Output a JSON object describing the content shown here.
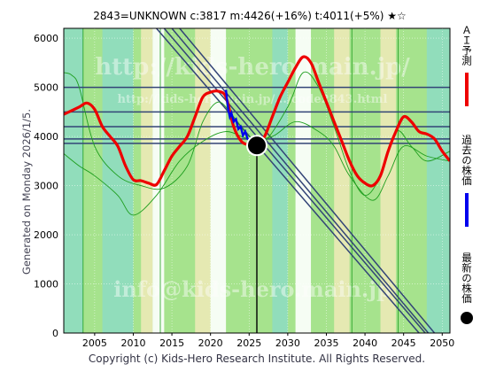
{
  "header": {
    "title": "2843=UNKNOWN    c:3817  m:4426(+16%)  t:4011(+5%)  ★☆"
  },
  "side_note": "Generated on Monday 2026/1/5.",
  "footer": "Copyright (c) Kids-Hero Research Institute. All Rights Reserved.",
  "watermarks": {
    "url": "http://kids-hero.main.jp/",
    "page": "http://kids-hero.main.jp/.../code2843.html",
    "email": "info@kids-hero.main.jp"
  },
  "legend": [
    {
      "label": "ＡＩ予測",
      "color": "#ee0000",
      "marker": "line"
    },
    {
      "label": "過去の株価",
      "color": "#0000ee",
      "marker": "line"
    },
    {
      "label": "最新の株価",
      "color": "#000000",
      "marker": "dot"
    }
  ],
  "colors": {
    "background_fill": "#a6e38d",
    "teal_band": "#8fdcc0",
    "pale_band": "#ece9b6",
    "white_band": "#ffffff",
    "ai_line": "#ee0000",
    "past_line": "#0000ee",
    "trend_lines": "#334477",
    "thin_green": "#1e9e1e"
  },
  "chart_data": {
    "type": "line",
    "title": "2843=UNKNOWN    c:3817  m:4426(+16%)  t:4011(+5%)  ★☆",
    "xlabel": "",
    "ylabel": "",
    "xlim": [
      2001,
      2051
    ],
    "ylim": [
      0,
      6200
    ],
    "x_ticks": [
      2005,
      2010,
      2015,
      2020,
      2025,
      2030,
      2035,
      2040,
      2045,
      2050
    ],
    "y_ticks": [
      0,
      1000,
      2000,
      3000,
      4000,
      5000,
      6000
    ],
    "grid": true,
    "legend_position": "right-outside",
    "series": [
      {
        "name": "ＡＩ予測",
        "x": [
          2001,
          2003,
          2004,
          2005,
          2006,
          2007,
          2008,
          2009,
          2010,
          2011,
          2012,
          2013,
          2014,
          2015,
          2016,
          2017,
          2018,
          2019,
          2020,
          2021,
          2022,
          2023,
          2024,
          2025,
          2026,
          2027,
          2028,
          2029,
          2030,
          2031,
          2032,
          2033,
          2034,
          2035,
          2036,
          2037,
          2038,
          2039,
          2040,
          2041,
          2042,
          2043,
          2044,
          2045,
          2046,
          2047,
          2048,
          2049,
          2050,
          2051
        ],
        "values": [
          4450,
          4600,
          4680,
          4550,
          4200,
          4000,
          3800,
          3400,
          3120,
          3100,
          3050,
          3020,
          3300,
          3600,
          3800,
          4000,
          4400,
          4800,
          4900,
          4920,
          4800,
          4200,
          3900,
          3830,
          3820,
          4000,
          4400,
          4800,
          5100,
          5400,
          5620,
          5500,
          5100,
          4700,
          4300,
          3900,
          3500,
          3200,
          3050,
          3000,
          3200,
          3700,
          4100,
          4400,
          4300,
          4100,
          4050,
          3950,
          3700,
          3500
        ]
      },
      {
        "name": "過去の株価",
        "x": [
          2022.0,
          2022.1,
          2022.3,
          2022.5,
          2022.7,
          2023.0,
          2023.3,
          2023.6,
          2023.9,
          2024.2,
          2024.5,
          2024.8,
          2025.1
        ],
        "values": [
          4950,
          4800,
          4550,
          4400,
          4480,
          4300,
          4350,
          4150,
          4200,
          4020,
          4100,
          3950,
          3900
        ]
      },
      {
        "name": "最新の株価",
        "x": [
          2026
        ],
        "values": [
          3817
        ]
      },
      {
        "name": "",
        "x": [
          2001,
          2002,
          2003,
          2005,
          2008,
          2011,
          2014,
          2017,
          2019,
          2021,
          2023,
          2025,
          2027,
          2030,
          2032,
          2034,
          2036,
          2038,
          2040,
          2042,
          2044,
          2046,
          2048,
          2051
        ],
        "values": [
          5300,
          5250,
          5000,
          3800,
          3200,
          3000,
          2950,
          3400,
          4300,
          4700,
          4400,
          4000,
          3900,
          4600,
          5300,
          5000,
          4200,
          3300,
          2800,
          3200,
          4100,
          3800,
          3500,
          3700
        ]
      },
      {
        "name": "",
        "x": [
          2001,
          2003,
          2005,
          2008,
          2010,
          2013,
          2016,
          2019,
          2022,
          2025,
          2028,
          2031,
          2034,
          2036,
          2038,
          2041,
          2043,
          2045,
          2048,
          2051
        ],
        "values": [
          3650,
          3400,
          3200,
          2800,
          2400,
          2800,
          3500,
          3900,
          4100,
          3950,
          4000,
          4300,
          4100,
          3800,
          3200,
          2700,
          3200,
          3800,
          3600,
          3500
        ]
      }
    ],
    "horizontal_lines": [
      5000,
      4500,
      4200,
      3950,
      3860
    ],
    "trend_lines": [
      {
        "from": [
          2013.0,
          6200
        ],
        "to": [
          2047.0,
          0
        ]
      },
      {
        "from": [
          2014.0,
          6200
        ],
        "to": [
          2047.8,
          0
        ]
      },
      {
        "from": [
          2015.0,
          6200
        ],
        "to": [
          2048.2,
          0
        ]
      },
      {
        "from": [
          2016.0,
          6200
        ],
        "to": [
          2049.0,
          0
        ]
      }
    ],
    "vertical_bands": [
      {
        "from": 2001,
        "to": 2003.5,
        "kind": "teal"
      },
      {
        "from": 2006,
        "to": 2010,
        "kind": "teal"
      },
      {
        "from": 2011,
        "to": 2012.5,
        "kind": "pale"
      },
      {
        "from": 2012.5,
        "to": 2014,
        "kind": "white"
      },
      {
        "from": 2018,
        "to": 2020,
        "kind": "pale"
      },
      {
        "from": 2020,
        "to": 2022,
        "kind": "white"
      },
      {
        "from": 2028,
        "to": 2030,
        "kind": "teal"
      },
      {
        "from": 2031,
        "to": 2033,
        "kind": "white"
      },
      {
        "from": 2036,
        "to": 2038,
        "kind": "pale"
      },
      {
        "from": 2042,
        "to": 2044,
        "kind": "pale"
      },
      {
        "from": 2048,
        "to": 2051,
        "kind": "teal"
      }
    ],
    "vertical_lines": [
      2003.5,
      2013.5,
      2038.3,
      2044.3
    ],
    "latest_marker_x": 2026
  }
}
